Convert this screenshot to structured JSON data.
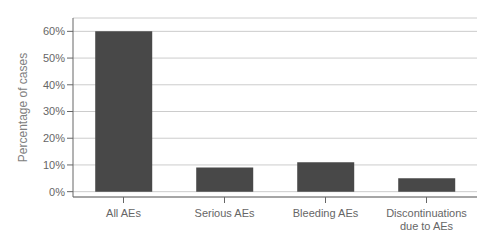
{
  "chart_data": {
    "type": "bar",
    "categories": [
      "All AEs",
      "Serious AEs",
      "Bleeding AEs",
      "Discontinuations\ndue to AEs"
    ],
    "values": [
      60,
      9,
      11,
      5
    ],
    "color": "#484848",
    "ylabel": "Percentage of cases",
    "ylim": [
      -2,
      65
    ],
    "yticks": [
      {
        "value": 0,
        "label": "0%"
      },
      {
        "value": 10,
        "label": "10%"
      },
      {
        "value": 20,
        "label": "20%"
      },
      {
        "value": 30,
        "label": "30%"
      },
      {
        "value": 40,
        "label": "40%"
      },
      {
        "value": 50,
        "label": "50%"
      },
      {
        "value": 60,
        "label": "60%"
      }
    ],
    "grid": true
  }
}
